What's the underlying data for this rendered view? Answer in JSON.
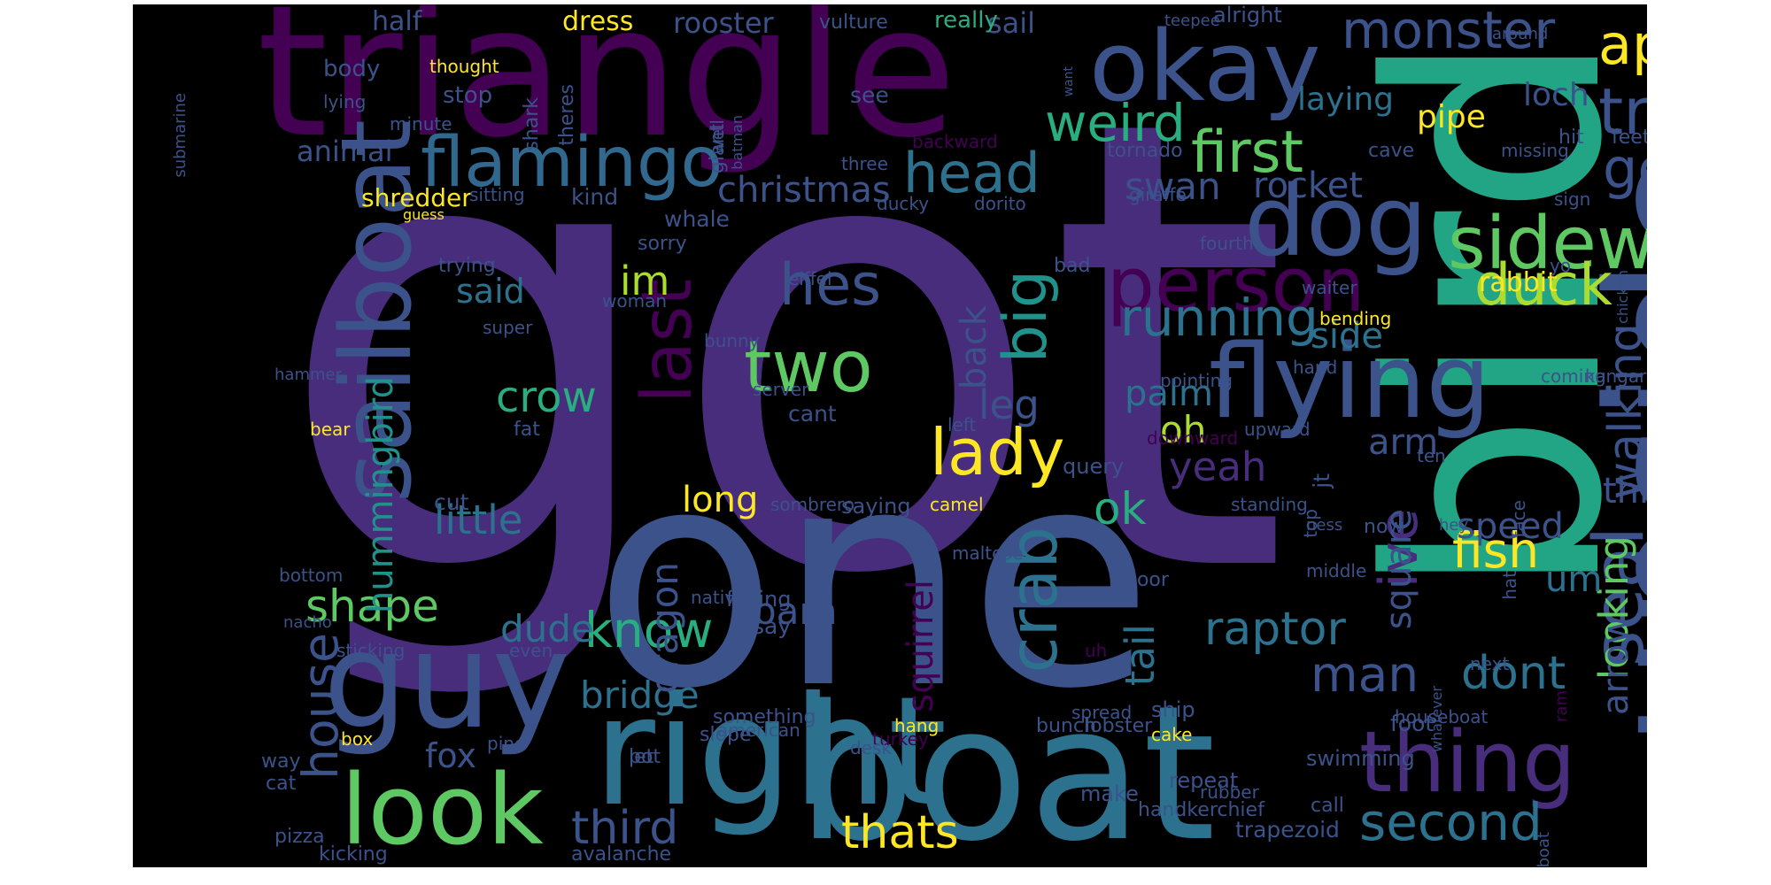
{
  "colors": {
    "background": "#000000",
    "palette": [
      "#440154",
      "#472d7b",
      "#3b528b",
      "#2c728e",
      "#21918c",
      "#28ae80",
      "#5ec962",
      "#addc30",
      "#fde725"
    ]
  },
  "words": [
    {
      "text": "got",
      "color": "#472d7b"
    },
    {
      "text": "one",
      "color": "#3b528b"
    },
    {
      "text": "bird",
      "color": "#21a585"
    },
    {
      "text": "triangle",
      "color": "#440154"
    },
    {
      "text": "upside",
      "color": "#3b528b"
    },
    {
      "text": "boat",
      "color": "#2c728e"
    },
    {
      "text": "right",
      "color": "#2c728e"
    },
    {
      "text": "guy",
      "color": "#3b528b"
    },
    {
      "text": "okay",
      "color": "#3b528b"
    },
    {
      "text": "dog",
      "color": "#3b528b"
    },
    {
      "text": "flying",
      "color": "#3b528b"
    },
    {
      "text": "look",
      "color": "#5ec962"
    },
    {
      "text": "sailboat",
      "color": "#3b528b"
    },
    {
      "text": "thing",
      "color": "#472d7b"
    },
    {
      "text": "person",
      "color": "#440154"
    },
    {
      "text": "sideways",
      "color": "#5ec962"
    },
    {
      "text": "flamingo",
      "color": "#31688e"
    },
    {
      "text": "apple",
      "color": "#fde725"
    },
    {
      "text": "tree",
      "color": "#3b528b"
    },
    {
      "text": "first",
      "color": "#5ec962"
    },
    {
      "text": "head",
      "color": "#2c728e"
    },
    {
      "text": "two",
      "color": "#5ec962"
    },
    {
      "text": "hes",
      "color": "#3b528b"
    },
    {
      "text": "last",
      "color": "#440154"
    },
    {
      "text": "big",
      "color": "#21918c"
    },
    {
      "text": "duck",
      "color": "#addc30"
    },
    {
      "text": "going",
      "color": "#3b528b"
    },
    {
      "text": "weird",
      "color": "#28ae80"
    },
    {
      "text": "monster",
      "color": "#3b528b"
    },
    {
      "text": "lady",
      "color": "#fde725"
    },
    {
      "text": "crab",
      "color": "#2c728e"
    },
    {
      "text": "running",
      "color": "#2c728e"
    },
    {
      "text": "fish",
      "color": "#fde725"
    },
    {
      "text": "seal",
      "color": "#3b528b"
    },
    {
      "text": "walking",
      "color": "#3b528b"
    },
    {
      "text": "second",
      "color": "#2c728e"
    },
    {
      "text": "know",
      "color": "#28ae80"
    },
    {
      "text": "man",
      "color": "#3b528b"
    },
    {
      "text": "dont",
      "color": "#2c728e"
    },
    {
      "text": "crow",
      "color": "#28ae80"
    },
    {
      "text": "little",
      "color": "#2c728e"
    },
    {
      "text": "third",
      "color": "#3b528b"
    },
    {
      "text": "thats",
      "color": "#fde725"
    },
    {
      "text": "shape",
      "color": "#5ec962"
    },
    {
      "text": "house",
      "color": "#3b528b"
    },
    {
      "text": "ive",
      "color": "#472d7b"
    },
    {
      "text": "square",
      "color": "#3b528b"
    },
    {
      "text": "looking",
      "color": "#5ec962"
    },
    {
      "text": "arrow",
      "color": "#3b528b"
    },
    {
      "text": "raptor",
      "color": "#2c728e"
    },
    {
      "text": "hummingbird",
      "color": "#21918c"
    },
    {
      "text": "im",
      "color": "#addc30"
    },
    {
      "text": "ok",
      "color": "#28ae80"
    },
    {
      "text": "speed",
      "color": "#3b528b"
    },
    {
      "text": "yeah",
      "color": "#472d7b"
    },
    {
      "text": "tail",
      "color": "#2c728e"
    },
    {
      "text": "dude",
      "color": "#2c728e"
    },
    {
      "text": "bridge",
      "color": "#2c728e"
    },
    {
      "text": "squirrel",
      "color": "#440154"
    },
    {
      "text": "dragon",
      "color": "#3b528b"
    },
    {
      "text": "long",
      "color": "#fde725"
    },
    {
      "text": "barn",
      "color": "#3b528b"
    },
    {
      "text": "leg",
      "color": "#3b528b"
    },
    {
      "text": "oh",
      "color": "#addc30"
    },
    {
      "text": "palm",
      "color": "#2c728e"
    },
    {
      "text": "side",
      "color": "#2c728e"
    },
    {
      "text": "arm",
      "color": "#3b528b"
    },
    {
      "text": "swan",
      "color": "#3b528b"
    },
    {
      "text": "rocket",
      "color": "#3b528b"
    },
    {
      "text": "christmas",
      "color": "#3b528b"
    },
    {
      "text": "think",
      "color": "#3b528b"
    },
    {
      "text": "um",
      "color": "#2c728e"
    },
    {
      "text": "pipe",
      "color": "#fde725"
    },
    {
      "text": "laying",
      "color": "#2c728e"
    },
    {
      "text": "loch",
      "color": "#3b528b"
    },
    {
      "text": "rabbit",
      "color": "#fde725"
    },
    {
      "text": "said",
      "color": "#2c728e"
    },
    {
      "text": "fox",
      "color": "#3b528b"
    },
    {
      "text": "back",
      "color": "#3b528b"
    },
    {
      "text": "animal",
      "color": "#3b528b"
    },
    {
      "text": "shredder",
      "color": "#fde725"
    },
    {
      "text": "kind",
      "color": "#3b528b"
    },
    {
      "text": "whale",
      "color": "#3b528b"
    },
    {
      "text": "sorry",
      "color": "#3b528b"
    },
    {
      "text": "dress",
      "color": "#fde725"
    },
    {
      "text": "rooster",
      "color": "#3b528b"
    },
    {
      "text": "half",
      "color": "#3b528b"
    },
    {
      "text": "sail",
      "color": "#3b528b"
    },
    {
      "text": "really",
      "color": "#28ae80"
    },
    {
      "text": "vulture",
      "color": "#3b528b"
    },
    {
      "text": "alright",
      "color": "#3b528b"
    },
    {
      "text": "teepee",
      "color": "#3b528b"
    },
    {
      "text": "around",
      "color": "#3b528b"
    },
    {
      "text": "body",
      "color": "#3b528b"
    },
    {
      "text": "thought",
      "color": "#fde725"
    },
    {
      "text": "stop",
      "color": "#3b528b"
    },
    {
      "text": "lying",
      "color": "#3b528b"
    },
    {
      "text": "minute",
      "color": "#3b528b"
    },
    {
      "text": "shark",
      "color": "#3b528b"
    },
    {
      "text": "theres",
      "color": "#3b528b"
    },
    {
      "text": "see",
      "color": "#3b528b"
    },
    {
      "text": "giant",
      "color": "#3b528b"
    },
    {
      "text": "batman",
      "color": "#3b528b"
    },
    {
      "text": "want",
      "color": "#3b528b"
    },
    {
      "text": "well",
      "color": "#3b528b"
    },
    {
      "text": "three",
      "color": "#3b528b"
    },
    {
      "text": "backward",
      "color": "#440154"
    },
    {
      "text": "tornado",
      "color": "#3b528b"
    },
    {
      "text": "missing",
      "color": "#3b528b"
    },
    {
      "text": "cave",
      "color": "#3b528b"
    },
    {
      "text": "hit",
      "color": "#3b528b"
    },
    {
      "text": "feet",
      "color": "#3b528b"
    },
    {
      "text": "sign",
      "color": "#3b528b"
    },
    {
      "text": "giraffe",
      "color": "#3b528b"
    },
    {
      "text": "ducky",
      "color": "#3b528b"
    },
    {
      "text": "dorito",
      "color": "#3b528b"
    },
    {
      "text": "fourth",
      "color": "#3b528b"
    },
    {
      "text": "yo",
      "color": "#3b528b"
    },
    {
      "text": "waiter",
      "color": "#3b528b"
    },
    {
      "text": "bending",
      "color": "#fde725"
    },
    {
      "text": "chicken",
      "color": "#3b528b"
    },
    {
      "text": "submarine",
      "color": "#3b528b"
    },
    {
      "text": "sitting",
      "color": "#3b528b"
    },
    {
      "text": "guess",
      "color": "#fde725"
    },
    {
      "text": "trying",
      "color": "#3b528b"
    },
    {
      "text": "bad",
      "color": "#3b528b"
    },
    {
      "text": "eiffel",
      "color": "#3b528b"
    },
    {
      "text": "woman",
      "color": "#3b528b"
    },
    {
      "text": "super",
      "color": "#3b528b"
    },
    {
      "text": "bunny",
      "color": "#3b528b"
    },
    {
      "text": "hand",
      "color": "#3b528b"
    },
    {
      "text": "coming",
      "color": "#3b528b"
    },
    {
      "text": "kangaroo",
      "color": "#3b528b"
    },
    {
      "text": "hammer",
      "color": "#3b528b"
    },
    {
      "text": "server",
      "color": "#3b528b"
    },
    {
      "text": "cant",
      "color": "#3b528b"
    },
    {
      "text": "pointing",
      "color": "#3b528b"
    },
    {
      "text": "left",
      "color": "#3b528b"
    },
    {
      "text": "bear",
      "color": "#fde725"
    },
    {
      "text": "fat",
      "color": "#3b528b"
    },
    {
      "text": "upward",
      "color": "#3b528b"
    },
    {
      "text": "downward",
      "color": "#440154"
    },
    {
      "text": "query",
      "color": "#3b528b"
    },
    {
      "text": "cut",
      "color": "#3b528b"
    },
    {
      "text": "sombrero",
      "color": "#3b528b"
    },
    {
      "text": "saying",
      "color": "#3b528b"
    },
    {
      "text": "camel",
      "color": "#fde725"
    },
    {
      "text": "standing",
      "color": "#3b528b"
    },
    {
      "text": "top",
      "color": "#3b528b"
    },
    {
      "text": "jt",
      "color": "#3b528b"
    },
    {
      "text": "ness",
      "color": "#3b528b"
    },
    {
      "text": "now",
      "color": "#3b528b"
    },
    {
      "text": "middle",
      "color": "#3b528b"
    },
    {
      "text": "ten",
      "color": "#3b528b"
    },
    {
      "text": "hey",
      "color": "#3b528b"
    },
    {
      "text": "hat",
      "color": "#3b528b"
    },
    {
      "text": "face",
      "color": "#3b528b"
    },
    {
      "text": "maltese",
      "color": "#3b528b"
    },
    {
      "text": "bottom",
      "color": "#3b528b"
    },
    {
      "text": "nacho",
      "color": "#3b528b"
    },
    {
      "text": "native",
      "color": "#3b528b"
    },
    {
      "text": "door",
      "color": "#3b528b"
    },
    {
      "text": "facing",
      "color": "#3b528b"
    },
    {
      "text": "next",
      "color": "#3b528b"
    },
    {
      "text": "sticking",
      "color": "#3b528b"
    },
    {
      "text": "say",
      "color": "#3b528b"
    },
    {
      "text": "uh",
      "color": "#440154"
    },
    {
      "text": "ram",
      "color": "#440154"
    },
    {
      "text": "even",
      "color": "#3b528b"
    },
    {
      "text": "american",
      "color": "#3b528b"
    },
    {
      "text": "spread",
      "color": "#3b528b"
    },
    {
      "text": "something",
      "color": "#3b528b"
    },
    {
      "text": "turkey",
      "color": "#440154"
    },
    {
      "text": "desk",
      "color": "#3b528b"
    },
    {
      "text": "slope",
      "color": "#3b528b"
    },
    {
      "text": "hang",
      "color": "#fde725"
    },
    {
      "text": "bunch",
      "color": "#3b528b"
    },
    {
      "text": "lobster",
      "color": "#3b528b"
    },
    {
      "text": "cake",
      "color": "#fde725"
    },
    {
      "text": "whatever",
      "color": "#3b528b"
    },
    {
      "text": "ship",
      "color": "#3b528b"
    },
    {
      "text": "houseboat",
      "color": "#3b528b"
    },
    {
      "text": "foot",
      "color": "#3b528b"
    },
    {
      "text": "box",
      "color": "#fde725"
    },
    {
      "text": "pine",
      "color": "#3b528b"
    },
    {
      "text": "pot",
      "color": "#3b528b"
    },
    {
      "text": "let",
      "color": "#3b528b"
    },
    {
      "text": "repeat",
      "color": "#3b528b"
    },
    {
      "text": "swimming",
      "color": "#3b528b"
    },
    {
      "text": "way",
      "color": "#3b528b"
    },
    {
      "text": "cat",
      "color": "#3b528b"
    },
    {
      "text": "call",
      "color": "#3b528b"
    },
    {
      "text": "rubber",
      "color": "#3b528b"
    },
    {
      "text": "speedboat",
      "color": "#3b528b"
    },
    {
      "text": "make",
      "color": "#3b528b"
    },
    {
      "text": "handkerchief",
      "color": "#3b528b"
    },
    {
      "text": "trapezoid",
      "color": "#3b528b"
    },
    {
      "text": "pizza",
      "color": "#3b528b"
    },
    {
      "text": "kicking",
      "color": "#3b528b"
    },
    {
      "text": "avalanche",
      "color": "#3b528b"
    }
  ]
}
